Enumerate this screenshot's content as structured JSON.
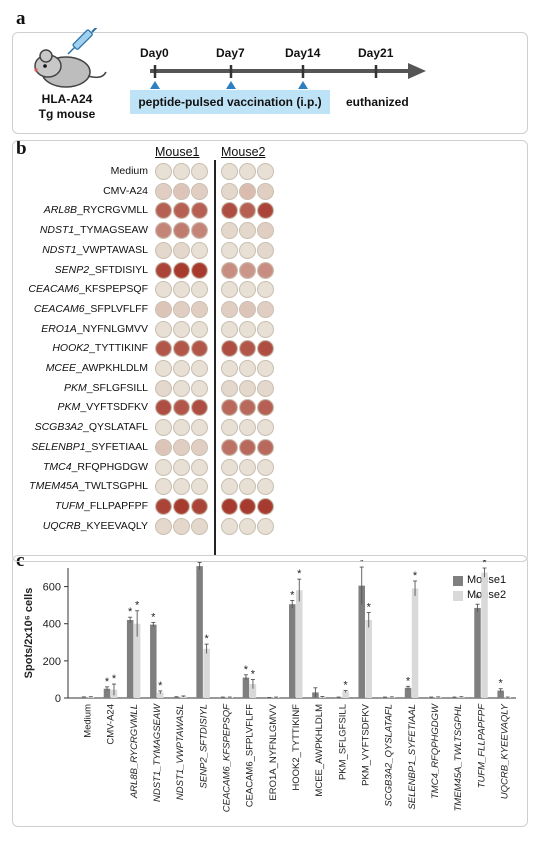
{
  "panels": {
    "a": "a",
    "b": "b",
    "c": "c"
  },
  "timeline": {
    "mouse_line1": "HLA-A24",
    "mouse_line2": "Tg mouse",
    "days": [
      "Day0",
      "Day7",
      "Day14",
      "Day21"
    ],
    "vaccination_label": "peptide-pulsed vaccination (i.p.)",
    "end_label": "euthanized"
  },
  "elispot": {
    "mouse_headers": [
      "Mouse1",
      "Mouse2"
    ],
    "rows": [
      {
        "gene": "",
        "peptide": "Medium",
        "m1": [
          0,
          0,
          0
        ],
        "m2": [
          0,
          0,
          0
        ]
      },
      {
        "gene": "",
        "peptide": "CMV-A24",
        "m1": [
          0.1,
          0.15,
          0.1
        ],
        "m2": [
          0.05,
          0.2,
          0.1
        ]
      },
      {
        "gene": "ARL8B",
        "peptide": "_RYCRGVMLL",
        "m1": [
          0.7,
          0.7,
          0.7
        ],
        "m2": [
          0.8,
          0.7,
          0.85
        ]
      },
      {
        "gene": "NDST1",
        "peptide": "_TYMAGSEAW",
        "m1": [
          0.5,
          0.55,
          0.5
        ],
        "m2": [
          0.05,
          0.05,
          0.1
        ]
      },
      {
        "gene": "NDST1",
        "peptide": "_VWPTAWASL",
        "m1": [
          0.05,
          0.05,
          0
        ],
        "m2": [
          0,
          0,
          0.05
        ]
      },
      {
        "gene": "SENP2",
        "peptide": "_SFTDISIYL",
        "m1": [
          0.85,
          0.9,
          0.9
        ],
        "m2": [
          0.45,
          0.4,
          0.45
        ]
      },
      {
        "gene": "CEACAM6",
        "peptide": "_KFSPEPSQF",
        "m1": [
          0,
          0,
          0
        ],
        "m2": [
          0,
          0,
          0
        ]
      },
      {
        "gene": "CEACAM6",
        "peptide": "_SFPLVFLFF",
        "m1": [
          0.15,
          0.1,
          0.1
        ],
        "m2": [
          0.1,
          0.15,
          0.1
        ]
      },
      {
        "gene": "ERO1A",
        "peptide": "_NYFNLGMVV",
        "m1": [
          0,
          0,
          0
        ],
        "m2": [
          0,
          0,
          0
        ]
      },
      {
        "gene": "HOOK2",
        "peptide": "_TYTTIKINF",
        "m1": [
          0.75,
          0.75,
          0.75
        ],
        "m2": [
          0.8,
          0.75,
          0.8
        ]
      },
      {
        "gene": "MCEE",
        "peptide": "_AWPKHLDLM",
        "m1": [
          0,
          0,
          0
        ],
        "m2": [
          0,
          0,
          0
        ]
      },
      {
        "gene": "PKM",
        "peptide": "_SFLGFSILL",
        "m1": [
          0.05,
          0,
          0
        ],
        "m2": [
          0.05,
          0.05,
          0.05
        ]
      },
      {
        "gene": "PKM",
        "peptide": "_VYFTSDFKV",
        "m1": [
          0.8,
          0.75,
          0.8
        ],
        "m2": [
          0.65,
          0.65,
          0.7
        ]
      },
      {
        "gene": "SCGB3A2",
        "peptide": "_QYSLATAFL",
        "m1": [
          0,
          0,
          0
        ],
        "m2": [
          0,
          0,
          0
        ]
      },
      {
        "gene": "SELENBP1",
        "peptide": "_SYFETIAAL",
        "m1": [
          0.15,
          0.1,
          0.1
        ],
        "m2": [
          0.6,
          0.65,
          0.65
        ]
      },
      {
        "gene": "TMC4",
        "peptide": "_RFQPHGDGW",
        "m1": [
          0,
          0,
          0
        ],
        "m2": [
          0,
          0,
          0
        ]
      },
      {
        "gene": "TMEM45A",
        "peptide": "_TWLTSGPHL",
        "m1": [
          0,
          0,
          0
        ],
        "m2": [
          0,
          0,
          0
        ]
      },
      {
        "gene": "TUFM",
        "peptide": "_FLLPAPFPF",
        "m1": [
          0.85,
          0.9,
          0.85
        ],
        "m2": [
          0.9,
          0.9,
          0.9
        ]
      },
      {
        "gene": "UQCRB",
        "peptide": "_KYEEVAQLY",
        "m1": [
          0.05,
          0.05,
          0.05
        ],
        "m2": [
          0,
          0,
          0
        ]
      }
    ]
  },
  "chart_data": {
    "type": "bar",
    "ylabel": "Spots/2x10⁶ cells",
    "ylim": [
      0,
      700
    ],
    "yticks": [
      0,
      200,
      400,
      600
    ],
    "categories": [
      "Medium",
      "CMV-A24",
      "ARL8B_RYCRGVMLL",
      "NDST1_TYMAGSEAW",
      "NDST1_VWPTAWASL",
      "SENP2_SFTDISIYL",
      "CEACAM6_KFSPEPSQF",
      "CEACAM6_SFPLVFLFF",
      "ERO1A_NYFNLGMVV",
      "HOOK2_TYTTIKINF",
      "MCEE_AWPKHLDLM",
      "PKM_SFLGFSILL",
      "PKM_VYFTSDFKV",
      "SCGB3A2_QYSLATAFL",
      "SELENBP1_SYFETIAAL",
      "TMC4_RFQPHGDGW",
      "TMEM45A_TWLTSGPHL",
      "TUFM_FLLPAPFPF",
      "UQCRB_KYEEVAQLY"
    ],
    "italic_categories": [
      2,
      3,
      4,
      5,
      6,
      13,
      14,
      15,
      16,
      17,
      18
    ],
    "series": [
      {
        "name": "Mouse1",
        "color": "#7f7f7f",
        "values": [
          4,
          50,
          420,
          395,
          5,
          710,
          3,
          110,
          2,
          505,
          30,
          3,
          605,
          3,
          55,
          3,
          3,
          485,
          40
        ],
        "errors": [
          2,
          10,
          15,
          12,
          2,
          20,
          2,
          15,
          1,
          20,
          25,
          2,
          100,
          2,
          8,
          2,
          2,
          20,
          10
        ],
        "significant": [
          false,
          true,
          true,
          true,
          false,
          true,
          false,
          true,
          false,
          true,
          false,
          false,
          true,
          false,
          true,
          false,
          false,
          true,
          true
        ]
      },
      {
        "name": "Mouse2",
        "color": "#d9d9d9",
        "values": [
          5,
          45,
          400,
          30,
          8,
          265,
          3,
          75,
          3,
          580,
          5,
          35,
          420,
          4,
          590,
          4,
          5,
          675,
          3
        ],
        "errors": [
          2,
          30,
          70,
          8,
          3,
          25,
          2,
          25,
          2,
          60,
          3,
          5,
          40,
          2,
          40,
          2,
          2,
          25,
          2
        ],
        "significant": [
          false,
          true,
          true,
          true,
          false,
          true,
          false,
          true,
          false,
          true,
          false,
          true,
          true,
          false,
          true,
          false,
          false,
          true,
          false
        ]
      }
    ],
    "legend_position": "top-right",
    "significance_marker": "*"
  }
}
